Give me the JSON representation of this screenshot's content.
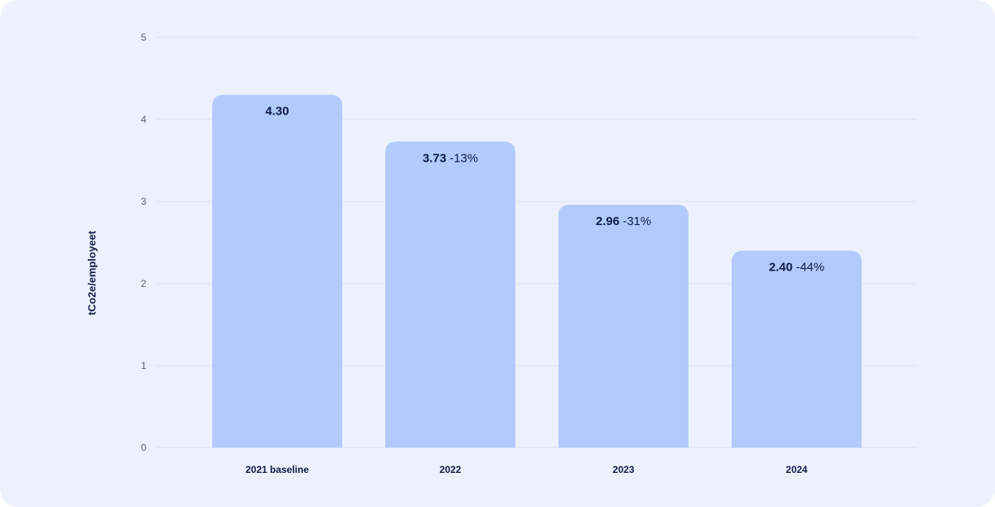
{
  "chart_data": {
    "type": "bar",
    "title": "",
    "xlabel": "",
    "ylabel": "tCo2e/employeet",
    "ylim": [
      0,
      5
    ],
    "yticks": [
      0,
      1,
      2,
      3,
      4,
      5
    ],
    "grid": true,
    "categories": [
      "2021 baseline",
      "2022",
      "2023",
      "2024"
    ],
    "values": [
      4.3,
      3.73,
      2.96,
      2.4
    ],
    "value_labels": [
      "4.30",
      "3.73",
      "2.96",
      "2.40"
    ],
    "change_labels": [
      "",
      "-13%",
      "-31%",
      "-44%"
    ]
  },
  "colors": {
    "background": "#ecf1fd",
    "bar": "#a9c4fc",
    "grid": "#dbe3f7",
    "text_dark": "#0e1a47",
    "tick_text": "#5a6178"
  }
}
